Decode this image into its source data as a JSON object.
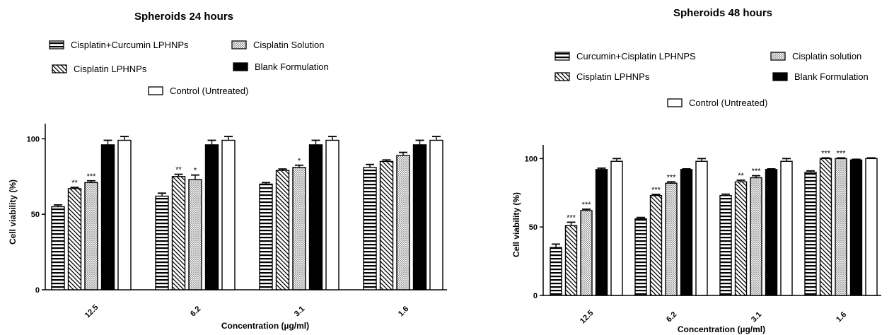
{
  "chart_data": [
    {
      "type": "bar",
      "title": "Spheroids 24 hours",
      "xlabel": "Concentration (µg/ml)",
      "ylabel": "Cell viability (%)",
      "ylim": [
        0,
        110
      ],
      "yticks": [
        0,
        50,
        100
      ],
      "categories": [
        "12.5",
        "6.2",
        "3.1",
        "1.6"
      ],
      "series": [
        {
          "name": "Cisplatin+Curcumin LPHNPs",
          "pattern": "hstripes",
          "values": [
            55,
            62,
            70,
            81
          ],
          "errors": [
            1.2,
            2.0,
            1.0,
            2.0
          ],
          "sig": [
            "",
            "",
            "",
            ""
          ]
        },
        {
          "name": "Cisplatin LPHNPs",
          "pattern": "diag",
          "values": [
            67,
            75,
            79,
            85
          ],
          "errors": [
            0.8,
            1.5,
            1.0,
            1.0
          ],
          "sig": [
            "**",
            "**",
            "",
            ""
          ]
        },
        {
          "name": "Cisplatin Solution",
          "pattern": "dots",
          "values": [
            71,
            73,
            81,
            89
          ],
          "errors": [
            1.2,
            3.0,
            1.5,
            2.0
          ],
          "sig": [
            "***",
            "*",
            "*",
            ""
          ]
        },
        {
          "name": "Blank Formulation",
          "pattern": "solid",
          "values": [
            96,
            96,
            96,
            96
          ],
          "errors": [
            3.0,
            3.0,
            3.0,
            3.0
          ],
          "sig": [
            "",
            "",
            "",
            ""
          ]
        },
        {
          "name": "Control (Untreated)",
          "pattern": "open",
          "values": [
            99,
            99,
            99,
            99
          ],
          "errors": [
            2.5,
            2.5,
            2.5,
            2.5
          ],
          "sig": [
            "",
            "",
            "",
            ""
          ]
        }
      ]
    },
    {
      "type": "bar",
      "title": "Spheroids 48 hours",
      "xlabel": "Concentration (µg/ml)",
      "ylabel": "Cell viability (%)",
      "ylim": [
        0,
        110
      ],
      "yticks": [
        0,
        50,
        100
      ],
      "categories": [
        "12.5",
        "6.2",
        "3.1",
        "1.6"
      ],
      "series": [
        {
          "name": "Curcumin+Cisplatin LPHNPS",
          "pattern": "hstripes",
          "values": [
            35,
            56,
            73,
            90
          ],
          "errors": [
            2.5,
            1.0,
            1.0,
            1.0
          ],
          "sig": [
            "",
            "",
            "",
            ""
          ]
        },
        {
          "name": "Cisplatin LPHNPs",
          "pattern": "diag",
          "values": [
            51,
            73,
            83,
            100
          ],
          "errors": [
            2.5,
            0.8,
            1.2,
            0.5
          ],
          "sig": [
            "***",
            "***",
            "**",
            "***"
          ]
        },
        {
          "name": "Cisplatin solution",
          "pattern": "dots",
          "values": [
            62,
            82,
            86,
            100
          ],
          "errors": [
            1.0,
            1.0,
            1.5,
            0.5
          ],
          "sig": [
            "***",
            "***",
            "***",
            "***"
          ]
        },
        {
          "name": "Blank Formulation",
          "pattern": "solid",
          "values": [
            92,
            92,
            92,
            99
          ],
          "errors": [
            1.0,
            0.5,
            0.5,
            0.5
          ],
          "sig": [
            "",
            "",
            "",
            ""
          ]
        },
        {
          "name": "Control (Untreated)",
          "pattern": "open",
          "values": [
            98,
            98,
            98,
            100
          ],
          "errors": [
            2.0,
            2.0,
            2.0,
            0.5
          ],
          "sig": [
            "",
            "",
            "",
            ""
          ]
        }
      ]
    }
  ]
}
